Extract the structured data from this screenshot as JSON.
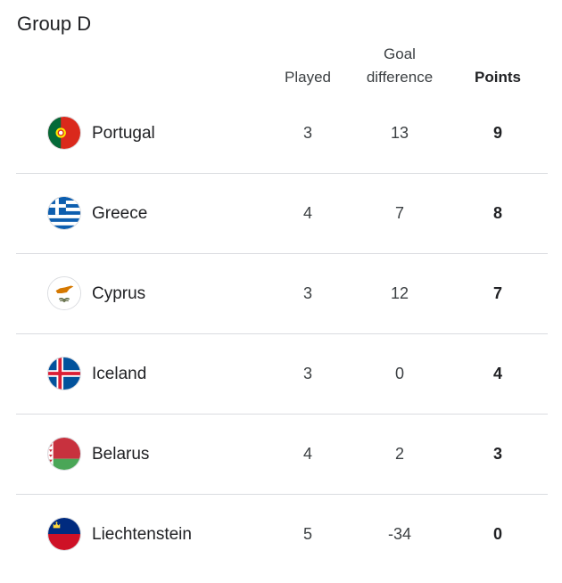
{
  "group_title": "Group D",
  "headers": {
    "played": "Played",
    "goal_difference_line1": "Goal",
    "goal_difference_line2": "difference",
    "points": "Points"
  },
  "rows": [
    {
      "team": "Portugal",
      "flag_icon": "portugal-flag-icon",
      "played": "3",
      "goal_difference": "13",
      "points": "9"
    },
    {
      "team": "Greece",
      "flag_icon": "greece-flag-icon",
      "played": "4",
      "goal_difference": "7",
      "points": "8"
    },
    {
      "team": "Cyprus",
      "flag_icon": "cyprus-flag-icon",
      "played": "3",
      "goal_difference": "12",
      "points": "7"
    },
    {
      "team": "Iceland",
      "flag_icon": "iceland-flag-icon",
      "played": "3",
      "goal_difference": "0",
      "points": "4"
    },
    {
      "team": "Belarus",
      "flag_icon": "belarus-flag-icon",
      "played": "4",
      "goal_difference": "2",
      "points": "3"
    },
    {
      "team": "Liechtenstein",
      "flag_icon": "liechtenstein-flag-icon",
      "played": "5",
      "goal_difference": "-34",
      "points": "0"
    }
  ]
}
